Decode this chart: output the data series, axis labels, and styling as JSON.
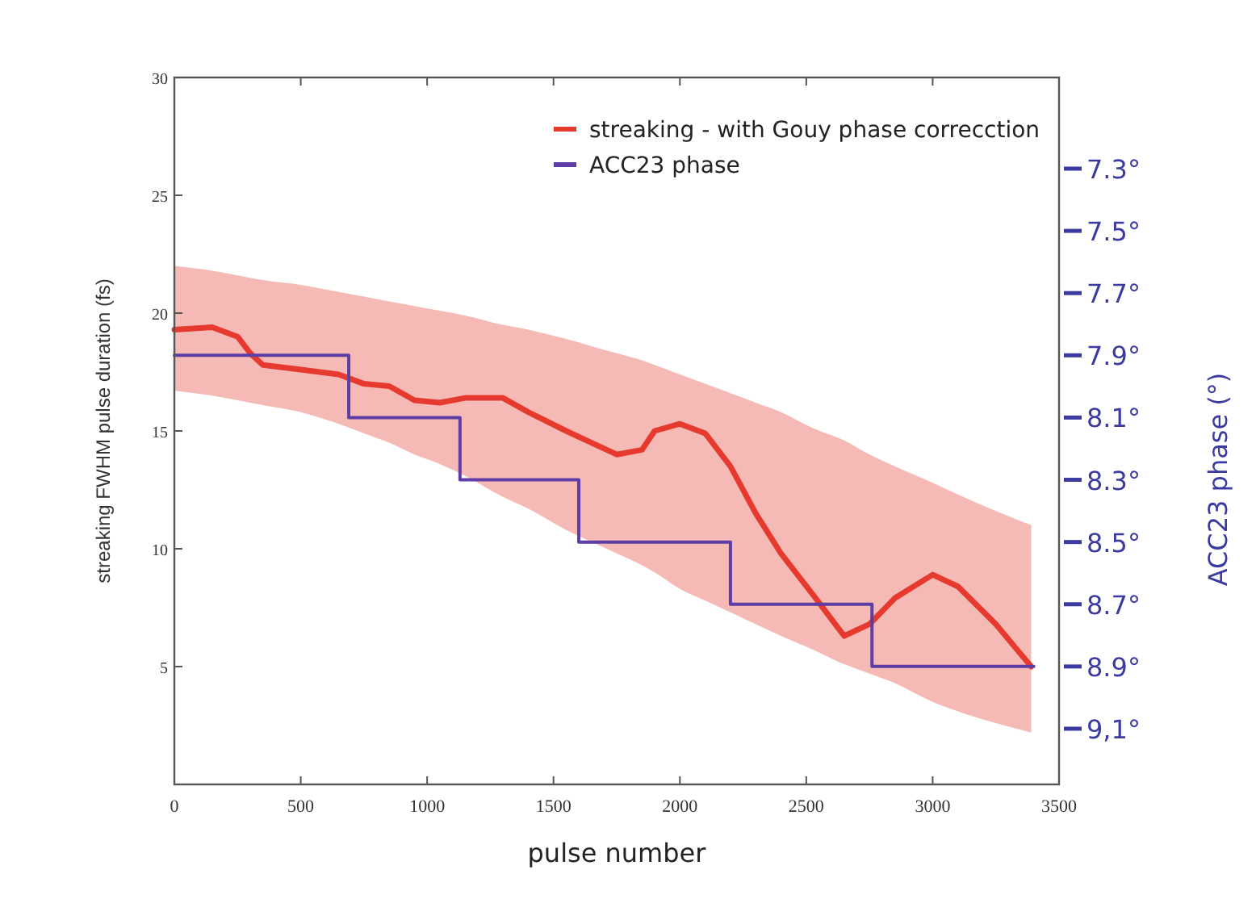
{
  "chart_data": {
    "type": "line",
    "xlabel": "pulse number",
    "ylabel": "streaking FWHM pulse duration (fs)",
    "y2label": "ACC23 phase (°)",
    "xlim": [
      0,
      3500
    ],
    "xticks": [
      0,
      500,
      1000,
      1500,
      2000,
      2500,
      3000,
      3500
    ],
    "ylim": [
      0,
      30
    ],
    "yticks": [
      5,
      10,
      15,
      20,
      25,
      30
    ],
    "y2lim": [
      9.279,
      7.007
    ],
    "y2ticks": [
      {
        "value": 7.3,
        "label": "7.3°"
      },
      {
        "value": 7.5,
        "label": "7.5°"
      },
      {
        "value": 7.7,
        "label": "7.7°"
      },
      {
        "value": 7.9,
        "label": "7.9°"
      },
      {
        "value": 8.1,
        "label": "8.1°"
      },
      {
        "value": 8.3,
        "label": "8.3°"
      },
      {
        "value": 8.5,
        "label": "8.5°"
      },
      {
        "value": 8.7,
        "label": "8.7°"
      },
      {
        "value": 8.9,
        "label": "8.9°"
      },
      {
        "value": 9.1,
        "label": "9,1°"
      }
    ],
    "grid": false,
    "legend": "top right",
    "line_style": "solid",
    "series": [
      {
        "name": "streaking - with Gouy phase correcction",
        "color": "#e63a2e",
        "x": [
          0,
          150,
          250,
          300,
          350,
          500,
          650,
          750,
          850,
          950,
          1050,
          1150,
          1300,
          1400,
          1550,
          1650,
          1750,
          1850,
          1900,
          2000,
          2100,
          2200,
          2300,
          2400,
          2530,
          2650,
          2750,
          2850,
          3000,
          3100,
          3250,
          3390
        ],
        "values": [
          19.3,
          19.4,
          19.0,
          18.3,
          17.8,
          17.6,
          17.4,
          17.0,
          16.9,
          16.3,
          16.2,
          16.4,
          16.4,
          15.8,
          15.0,
          14.5,
          14.0,
          14.2,
          15.0,
          15.3,
          14.9,
          13.5,
          11.5,
          9.8,
          8.0,
          6.3,
          6.8,
          7.9,
          8.9,
          8.4,
          6.8,
          5.0
        ],
        "upper": [
          22.0,
          21.8,
          21.6,
          21.5,
          21.4,
          21.2,
          20.9,
          20.7,
          20.5,
          20.3,
          20.1,
          19.9,
          19.5,
          19.3,
          18.9,
          18.6,
          18.3,
          18.0,
          17.8,
          17.4,
          17.0,
          16.6,
          16.2,
          15.8,
          15.1,
          14.6,
          14.0,
          13.5,
          12.8,
          12.3,
          11.6,
          11.0
        ],
        "lower": [
          16.7,
          16.5,
          16.3,
          16.2,
          16.1,
          15.8,
          15.3,
          14.9,
          14.5,
          14.0,
          13.6,
          13.1,
          12.2,
          11.7,
          10.8,
          10.3,
          9.8,
          9.3,
          9.0,
          8.3,
          7.8,
          7.3,
          6.8,
          6.3,
          5.7,
          5.1,
          4.7,
          4.3,
          3.5,
          3.1,
          2.6,
          2.2
        ]
      },
      {
        "name": "ACC23 phase",
        "type": "step",
        "axis": "y2",
        "color": "#5e3ea6",
        "x": [
          0,
          690,
          1130,
          1600,
          2200,
          2760,
          3400
        ],
        "values": [
          7.9,
          8.1,
          8.3,
          8.5,
          8.7,
          8.9,
          8.9
        ]
      }
    ]
  }
}
